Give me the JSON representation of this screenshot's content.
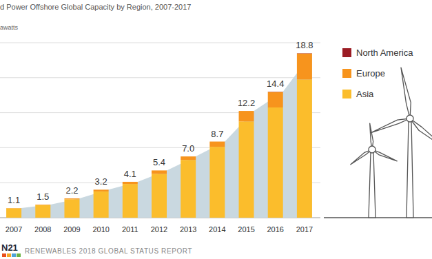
{
  "chart_data": {
    "type": "bar",
    "title": "d Power Offshore Global Capacity by Region, 2007-2017",
    "y_label": "awatts",
    "source": "RENEWABLES 2018 GLOBAL STATUS REPORT",
    "logo_text": "N21",
    "categories": [
      "2007",
      "2008",
      "2009",
      "2010",
      "2011",
      "2012",
      "2013",
      "2014",
      "2015",
      "2016",
      "2017"
    ],
    "series": [
      {
        "name": "Asia",
        "color": "#fbbd2c",
        "values": [
          1.07,
          1.45,
          2.1,
          3.0,
          3.85,
          5.0,
          6.6,
          8.1,
          11.0,
          12.6,
          15.8
        ]
      },
      {
        "name": "Europe",
        "color": "#f7941d",
        "values": [
          0.03,
          0.05,
          0.1,
          0.2,
          0.25,
          0.4,
          0.4,
          0.6,
          1.2,
          1.77,
          2.97
        ]
      },
      {
        "name": "North America",
        "color": "#9b1c24",
        "values": [
          0,
          0,
          0,
          0,
          0,
          0,
          0,
          0,
          0,
          0.03,
          0.03
        ]
      }
    ],
    "totals": [
      1.1,
      1.5,
      2.2,
      3.2,
      4.1,
      5.4,
      7.0,
      8.7,
      12.2,
      14.4,
      18.8
    ],
    "stacked": true,
    "ylim": [
      0,
      20
    ],
    "yticks": [
      0,
      4,
      8,
      12,
      16,
      20
    ],
    "grid": true,
    "tick_labels": "x",
    "legend": "right"
  }
}
